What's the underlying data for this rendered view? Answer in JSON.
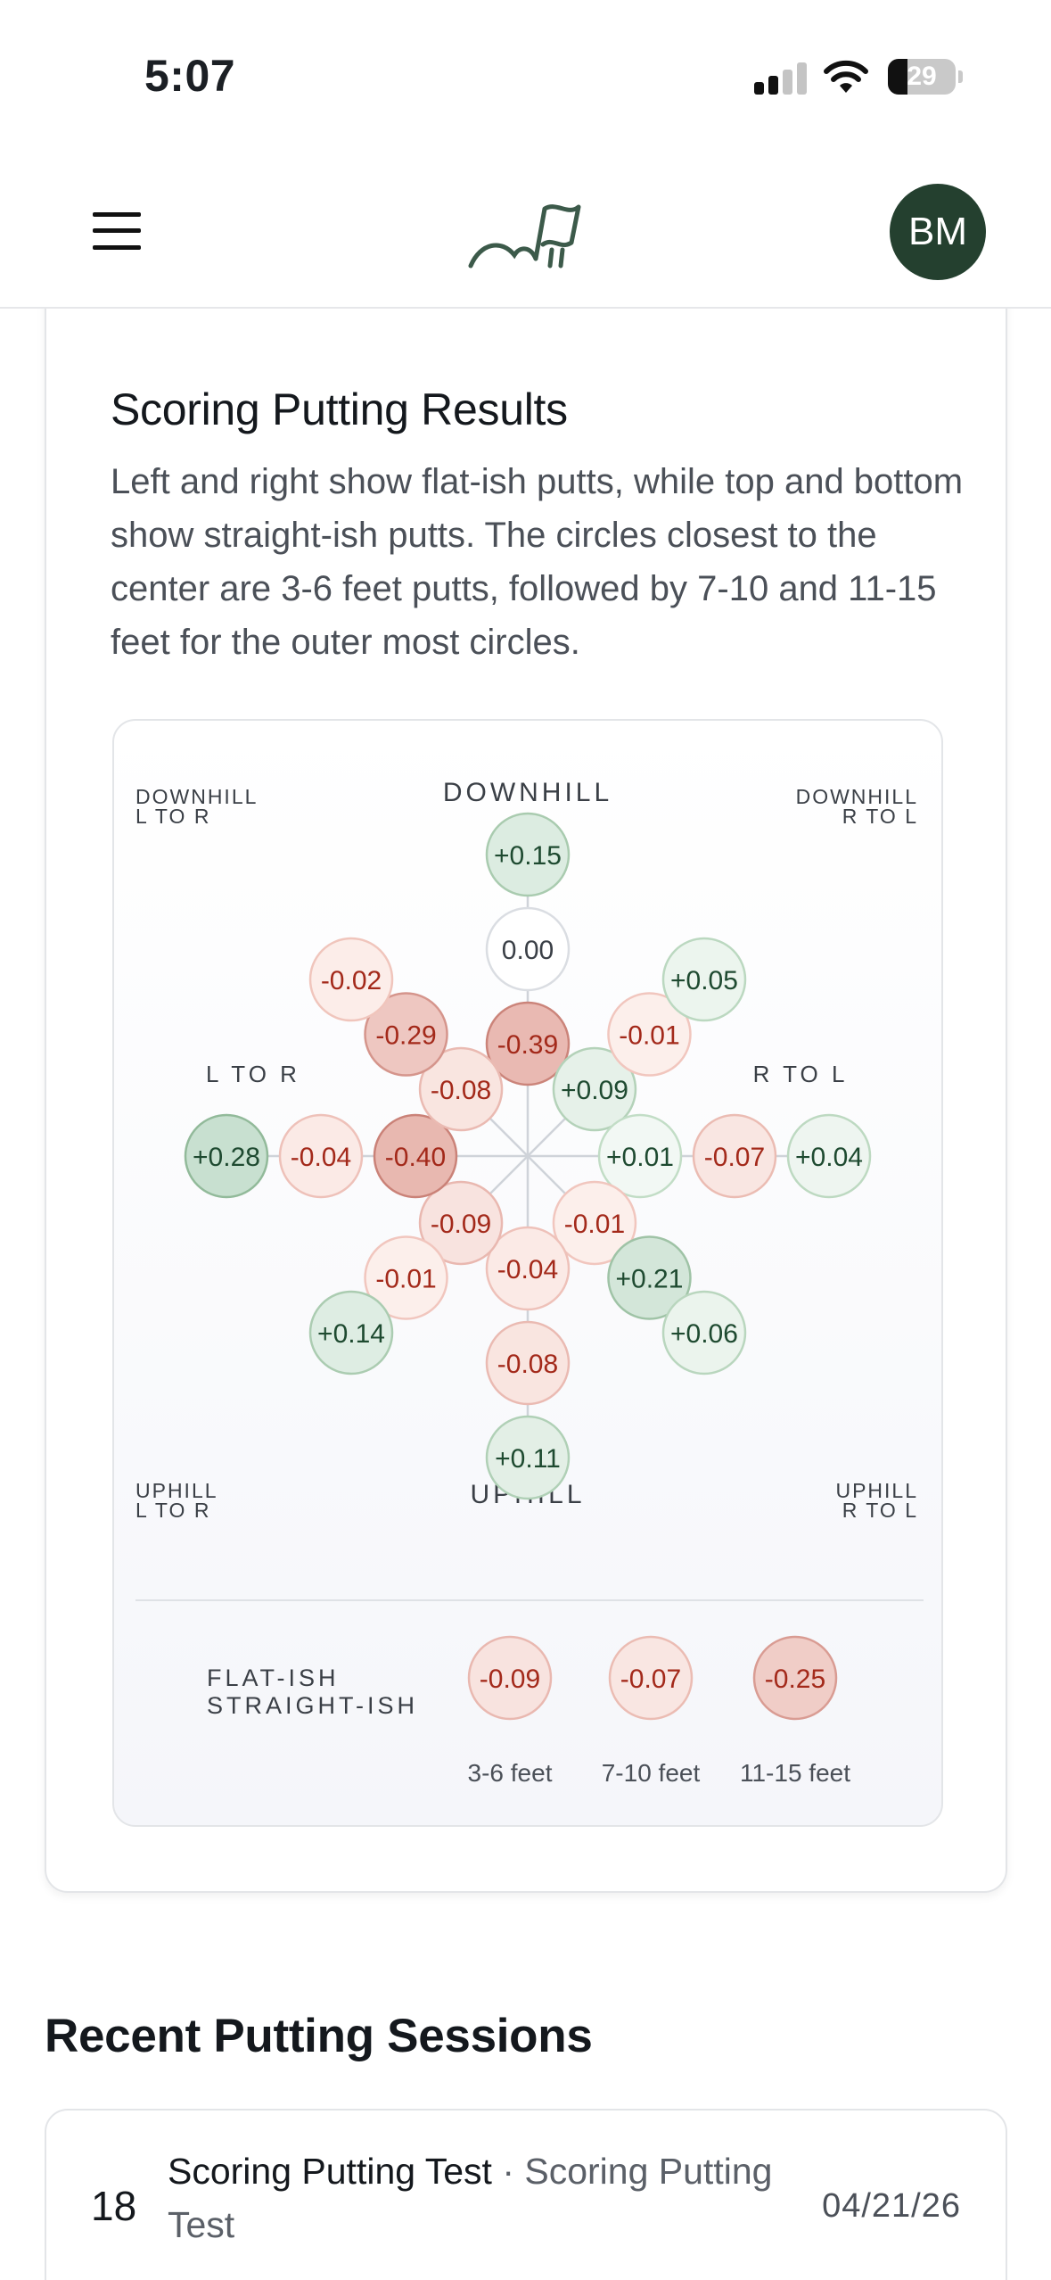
{
  "status_bar": {
    "time": "5:07",
    "battery_percent": 29,
    "battery_label": "29",
    "icons": [
      "cellular-signal-icon",
      "wifi-icon",
      "battery-icon"
    ]
  },
  "nav": {
    "menu_icon": "hamburger-menu-icon",
    "logo_icon": "golf-flag-logo-icon",
    "avatar_initials": "BM"
  },
  "colors": {
    "brand": "#24402f",
    "positive_text": "#1e4a30",
    "negative_text": "#a3291a",
    "neutral_text": "#3a3f46"
  },
  "results": {
    "title": "Scoring Putting Results",
    "description": "Left and right show flat-ish putts, while top and bottom show straight-ish putts. The circles closest to the center are 3-6 feet putts, followed by 7-10 and 11-15 feet for the outer most circles.",
    "direction_labels": {
      "top": "DOWNHILL",
      "bottom": "UPHILL",
      "left": "L TO R",
      "right": "R TO L",
      "top_left": [
        "DOWNHILL",
        "L TO R"
      ],
      "top_right": [
        "DOWNHILL",
        "R TO L"
      ],
      "bottom_left": [
        "UPHILL",
        "L TO R"
      ],
      "bottom_right": [
        "UPHILL",
        "R TO L"
      ]
    },
    "distance_bands": [
      "3-6 feet",
      "7-10 feet",
      "11-15 feet"
    ],
    "directions": [
      {
        "direction": "DOWNHILL",
        "values": [
          "-0.39",
          "0.00",
          "+0.15"
        ]
      },
      {
        "direction": "DOWNHILL R TO L",
        "values": [
          "+0.09",
          "-0.01",
          "+0.05"
        ]
      },
      {
        "direction": "R TO L",
        "values": [
          "+0.01",
          "-0.07",
          "+0.04"
        ]
      },
      {
        "direction": "UPHILL R TO L",
        "values": [
          "-0.01",
          "+0.21",
          "+0.06"
        ]
      },
      {
        "direction": "UPHILL",
        "values": [
          "-0.04",
          "-0.08",
          "+0.11"
        ]
      },
      {
        "direction": "UPHILL L TO R",
        "values": [
          "-0.09",
          "-0.01",
          "+0.14"
        ]
      },
      {
        "direction": "L TO R",
        "values": [
          "-0.40",
          "-0.04",
          "+0.28"
        ]
      },
      {
        "direction": "DOWNHILL L TO R",
        "values": [
          "-0.08",
          "-0.29",
          "-0.02"
        ]
      }
    ],
    "summary": {
      "label_lines": [
        "FLAT-ISH",
        "STRAIGHT-ISH"
      ],
      "values": [
        "-0.09",
        "-0.07",
        "-0.25"
      ],
      "bands": [
        "3-6 feet",
        "7-10 feet",
        "11-15 feet"
      ]
    }
  },
  "recent": {
    "title": "Recent Putting Sessions",
    "sessions": [
      {
        "number": "18",
        "name": "Scoring Putting Test",
        "separator": "·",
        "type": "Scoring Putting Test",
        "date": "04/21/26"
      }
    ]
  }
}
